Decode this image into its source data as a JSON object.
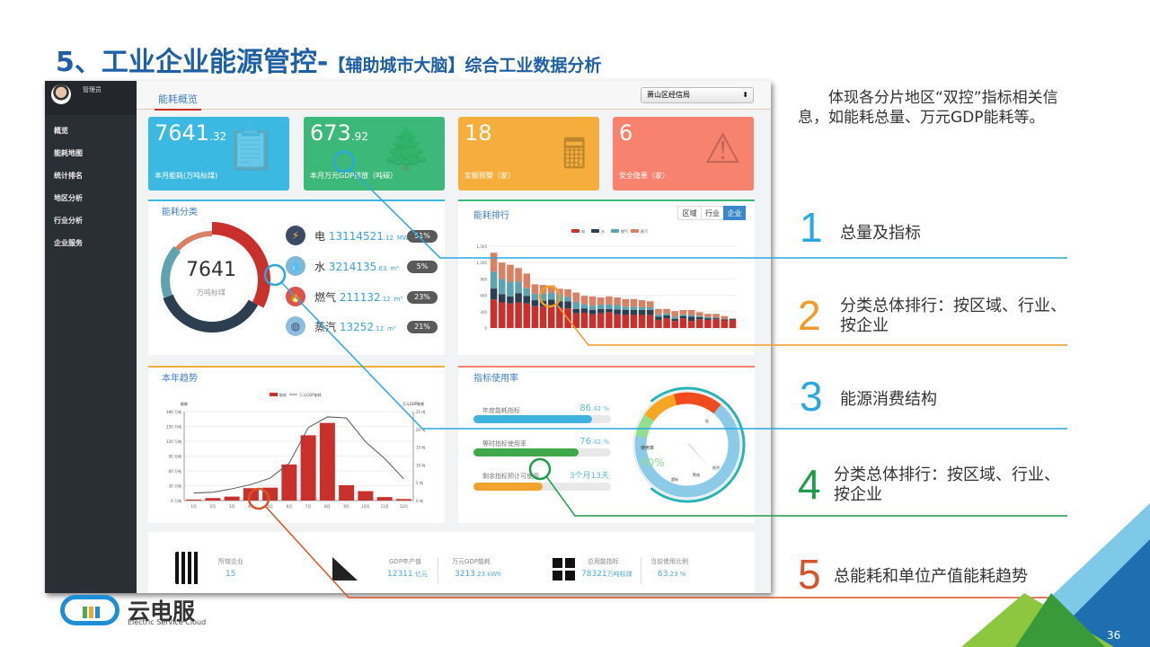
{
  "slide": {
    "title_main": "5、工业企业能源管控-",
    "title_sub": "【辅助城市大脑】综合工业数据分析",
    "page_number": "36",
    "description": "体现各分片地区“双控”指标相关信息，如能耗总量、万元GDP能耗等。",
    "annotations": [
      {
        "num": "1",
        "text": "总量及指标",
        "color": "#29a8e0"
      },
      {
        "num": "2",
        "text": "分类总体排行：按区域、行业、按企业",
        "color": "#f39b24"
      },
      {
        "num": "3",
        "text": "能源消费结构",
        "color": "#29a8e0"
      },
      {
        "num": "4",
        "text": "分类总体排行：按区域、行业、按企业",
        "color": "#1a9e4b"
      },
      {
        "num": "5",
        "text": "总能耗和单位产值能耗趋势",
        "color": "#d9542a"
      }
    ],
    "logo": {
      "name": "云电服",
      "tagline": "Electric Service Cloud"
    }
  },
  "app": {
    "sidebar": {
      "user": "管理员",
      "items": [
        "概览",
        "能耗地图",
        "统计排名",
        "地区分析",
        "行业分析",
        "企业服务"
      ]
    },
    "header": {
      "tab": "能耗概览",
      "select": "萧山区经信局"
    },
    "cards": [
      {
        "value": "7641",
        "decimal": ".32",
        "label": "本月能耗(万吨标煤)",
        "color": "#3cb9e3",
        "icon": "clipboard-icon"
      },
      {
        "value": "673",
        "decimal": ".92",
        "label": "本月万元GDP排放（吨碳）",
        "color": "#3cb878",
        "icon": "tree-icon"
      },
      {
        "value": "18",
        "decimal": "",
        "label": "定额预警（家）",
        "color": "#f5ad3b",
        "icon": "calculator-icon"
      },
      {
        "value": "6",
        "decimal": "",
        "label": "安全隐患（家）",
        "color": "#f7836e",
        "icon": "warning-icon"
      }
    ],
    "energy": {
      "title": "能耗分类",
      "total": "7641",
      "unit": "万吨标煤",
      "items": [
        {
          "name": "电",
          "value": "13114521",
          "decimal": ".12",
          "unit": "MWh",
          "pct": "51%",
          "icon": "lightning-icon"
        },
        {
          "name": "水",
          "value": "3214135",
          "decimal": ".63",
          "unit": "m³",
          "pct": "5%",
          "icon": "water-drop-icon"
        },
        {
          "name": "燃气",
          "value": "211132",
          "decimal": ".12",
          "unit": "m³",
          "pct": "23%",
          "icon": "flame-icon"
        },
        {
          "name": "蒸汽",
          "value": "13252",
          "decimal": ".12",
          "unit": "m³",
          "pct": "21%",
          "icon": "steam-icon"
        }
      ]
    },
    "ranking": {
      "title": "能耗排行",
      "buttons": [
        "区域",
        "行业",
        "企业"
      ],
      "active": "企业"
    },
    "trend": {
      "title": "本年趋势"
    },
    "usage": {
      "title": "指标使用率",
      "bars": [
        {
          "label": "年度能耗指标",
          "value": "86",
          "decimal": ".42 %",
          "pct": 86.42,
          "color": "#3fb3e0"
        },
        {
          "label": "等时指标使用率",
          "value": "76",
          "decimal": ".42 %",
          "pct": 76.42,
          "color": "#3ea84a"
        },
        {
          "label": "剩余指标预计可使用",
          "value": "3个月13天",
          "decimal": "",
          "pct": 50,
          "color": "#f0a22e"
        }
      ],
      "gauge": {
        "label": "使用率",
        "value": "90%",
        "pct": 90,
        "zones": [
          "低",
          "经济",
          "警戒",
          "超标"
        ]
      }
    },
    "stats": [
      {
        "label": "所辖企业",
        "value": "15",
        "unit": ""
      },
      {
        "label": "GDP年产值",
        "value": "12311",
        "unit": " 亿元"
      },
      {
        "label": "万元GDP能耗",
        "value": "3213",
        "unit": ".23 kWh"
      },
      {
        "label": "总用能指标",
        "value": "78321",
        "unit": "万吨标煤"
      },
      {
        "label": "当前使用比例",
        "value": "63",
        "unit": ".23 %"
      }
    ]
  },
  "chart_data": [
    {
      "type": "bar",
      "stacked": true,
      "title": "能耗排行",
      "legend_position": "top",
      "series": [
        {
          "name": "电",
          "color": "#c9302c",
          "values": [
            524,
            470,
            450,
            470,
            450,
            400,
            390,
            380,
            380,
            360,
            270,
            280,
            250,
            270,
            290,
            250,
            240,
            240,
            240,
            240,
            150,
            180,
            130,
            180,
            130,
            160,
            150,
            160,
            140,
            150
          ]
        },
        {
          "name": "水",
          "color": "#2c3e50",
          "values": [
            200,
            150,
            130,
            170,
            140,
            110,
            110,
            140,
            110,
            130,
            80,
            80,
            80,
            80,
            60,
            90,
            90,
            90,
            90,
            90,
            60,
            50,
            40,
            40,
            80,
            40,
            30,
            20,
            20,
            20
          ]
        },
        {
          "name": "燃气",
          "color": "#5ea3ad",
          "values": [
            310,
            280,
            270,
            210,
            140,
            120,
            130,
            130,
            130,
            80,
            130,
            80,
            80,
            80,
            80,
            80,
            60,
            60,
            50,
            50,
            40,
            40,
            40,
            30,
            30,
            20,
            20,
            10,
            0,
            0
          ]
        },
        {
          "name": "蒸汽",
          "color": "#d98164",
          "values": [
            346,
            300,
            310,
            250,
            270,
            170,
            160,
            130,
            100,
            140,
            170,
            150,
            170,
            130,
            150,
            140,
            140,
            140,
            130,
            110,
            100,
            80,
            100,
            80,
            90,
            70,
            60,
            70,
            60,
            0
          ]
        }
      ],
      "ylim": [
        0,
        1500
      ],
      "yticks": [
        "0",
        "300",
        "600",
        "900",
        "1,200",
        "1,500"
      ],
      "grid": true
    },
    {
      "type": "bar+line",
      "title": "本年趋势",
      "legend_position": "top",
      "categories": [
        "1月",
        "2月",
        "3月",
        "4月",
        "5月",
        "6月",
        "7月",
        "8月",
        "9月",
        "10月",
        "11月",
        "12月"
      ],
      "series": [
        {
          "name": "能耗",
          "type": "bar",
          "axis": "left",
          "color": "#c9302c",
          "values": [
            2,
            5,
            8,
            25,
            26,
            73,
            132,
            157,
            31,
            19,
            7,
            3
          ]
        },
        {
          "name": "万元GDP能耗",
          "type": "line",
          "axis": "right",
          "color": "#555555",
          "values": [
            2.1,
            2.3,
            3.3,
            4.5,
            6.3,
            10.5,
            20.5,
            23.5,
            23.2,
            16.5,
            11.8,
            6.1
          ]
        }
      ],
      "ylabel": "能耗",
      "y2label": "万元GDP能耗",
      "ylim": [
        0,
        180
      ],
      "yticks": [
        "0 万吨",
        "30 万吨",
        "60 万吨",
        "90 万吨",
        "120 万吨",
        "150 万吨",
        "180 万吨"
      ],
      "y2lim": [
        0,
        25
      ],
      "y2ticks": [
        "0 吨",
        "5 吨",
        "10 吨",
        "15 吨",
        "20 吨",
        "25 吨"
      ],
      "grid": true
    }
  ]
}
